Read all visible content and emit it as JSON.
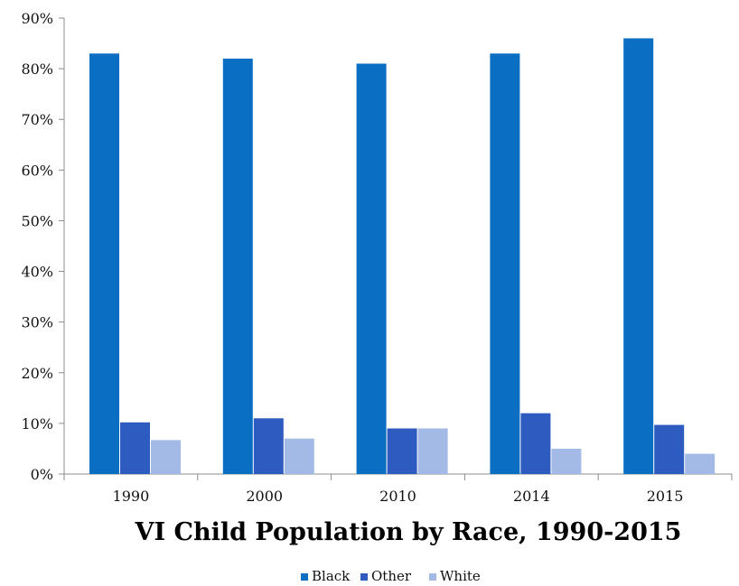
{
  "chart_data": {
    "type": "bar",
    "title": "VI Child Population by Race, 1990-2015",
    "categories": [
      "1990",
      "2000",
      "2010",
      "2014",
      "2015"
    ],
    "series": [
      {
        "name": "Black",
        "values": [
          83,
          82,
          81,
          83,
          86
        ],
        "color": "#0a6fc2"
      },
      {
        "name": "Other",
        "values": [
          10.2,
          11,
          9,
          12,
          9.7
        ],
        "color": "#2e5bbf"
      },
      {
        "name": "White",
        "values": [
          6.7,
          7,
          9,
          5,
          4
        ],
        "color": "#a3b9e6"
      }
    ],
    "ylim": [
      0,
      90
    ],
    "yticks": [
      "0%",
      "10%",
      "20%",
      "30%",
      "40%",
      "50%",
      "60%",
      "70%",
      "80%",
      "90%"
    ],
    "xlabel": "",
    "ylabel": "",
    "grid": false,
    "legend_position": "bottom",
    "axis_color": "#8c8c8c"
  }
}
